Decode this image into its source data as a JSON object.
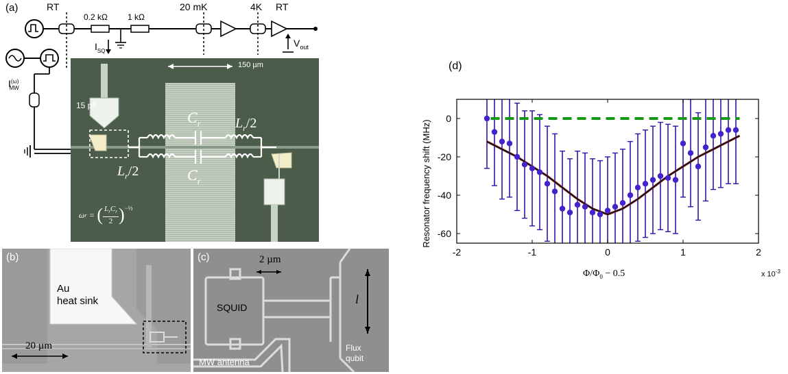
{
  "panel_a": {
    "letter": "(a)",
    "rt_left": "RT",
    "r1": "0.2 kΩ",
    "r2": "1 kΩ",
    "temp_20mk": "20 mK",
    "temp_4k": "4K",
    "rt_right": "RT",
    "vout": "V",
    "vout_sub": "out",
    "isq": "I",
    "isq_sub": "SQ",
    "imw": "I",
    "imw_sup": "(ω)",
    "imw_sub": "MW",
    "scale": "150 µm",
    "cap": "15 pF",
    "cr_top": "C",
    "cr_top_sub": "r",
    "cr_bot": "C",
    "cr_bot_sub": "r",
    "lr_right": "L",
    "lr_right_tail": "/2",
    "lr_left": "L",
    "lr_left_tail": "/2",
    "lr_sub": "r",
    "formula_lhs": "ω",
    "formula_lhs_sub": "r",
    "formula_rhs_num": "L",
    "formula_rhs_num_sub1": "r",
    "formula_rhs_num2": "C",
    "formula_rhs_num_sub2": "r",
    "formula_den": "2",
    "formula_exp": "−½"
  },
  "panel_b": {
    "letter": "(b)",
    "au_line1": "Au",
    "au_line2": "heat sink",
    "scale": "20 µm"
  },
  "panel_c": {
    "letter": "(c)",
    "scale": "2 µm",
    "squid": "SQUID",
    "length": "l",
    "antenna": "MW antenna",
    "flux1": "Flux",
    "flux2": "qubit"
  },
  "panel_d": {
    "letter": "(d)",
    "ylabel": "Resonator frequency shift (MHz)",
    "xlabel": "Φ/Φ",
    "xlabel_sub": "0",
    "xlabel_tail": " − 0.5",
    "x_multiplier": "x 10",
    "x_multiplier_exp": "-3"
  },
  "chart_data": {
    "type": "scatter",
    "xlim": [
      -2,
      2
    ],
    "ylim": [
      -65,
      10
    ],
    "x_ticks": [
      "-2",
      "-1",
      "0",
      "1",
      "2"
    ],
    "y_ticks": [
      "0",
      "-20",
      "-40",
      "-60"
    ],
    "x_tick_values": [
      -2,
      -1,
      0,
      1,
      2
    ],
    "y_tick_values": [
      0,
      -20,
      -40,
      -60
    ],
    "grid": false,
    "colors": {
      "points": "#4422cc",
      "errorbars": "#3311aa",
      "fit": "#111111",
      "fit_overlay": "#b03030",
      "reference": "#119911"
    },
    "series": [
      {
        "kind": "points_with_errorbars",
        "x": [
          -1.6,
          -1.5,
          -1.4,
          -1.3,
          -1.2,
          -1.1,
          -1.0,
          -0.9,
          -0.8,
          -0.7,
          -0.6,
          -0.5,
          -0.4,
          -0.3,
          -0.2,
          -0.1,
          0.0,
          0.1,
          0.2,
          0.3,
          0.4,
          0.5,
          0.6,
          0.7,
          0.8,
          0.9,
          1.0,
          1.1,
          1.2,
          1.3,
          1.4,
          1.5,
          1.6,
          1.7
        ],
        "y": [
          0,
          -7,
          -12,
          -13,
          -20,
          -24,
          -26,
          -28,
          -34,
          -38,
          -47,
          -49,
          -45,
          -46,
          -49,
          -50,
          -48,
          -46,
          -44,
          -40,
          -36,
          -34,
          -32,
          -30,
          -31,
          -32,
          -13,
          -18,
          -25,
          -15,
          -9,
          -8,
          -6,
          -6
        ],
        "err": [
          26,
          28,
          30,
          28,
          28,
          28,
          30,
          30,
          30,
          30,
          30,
          28,
          28,
          28,
          28,
          28,
          28,
          28,
          28,
          28,
          28,
          28,
          28,
          28,
          28,
          28,
          28,
          28,
          28,
          28,
          28,
          28,
          28,
          28
        ]
      },
      {
        "kind": "fit",
        "x": [
          -1.6,
          -1.4,
          -1.2,
          -1.0,
          -0.8,
          -0.6,
          -0.4,
          -0.2,
          0.0,
          0.2,
          0.4,
          0.6,
          0.8,
          1.0,
          1.2,
          1.4,
          1.6,
          1.75
        ],
        "y": [
          -12,
          -16,
          -20,
          -25,
          -30,
          -36,
          -42,
          -47,
          -50,
          -47,
          -42,
          -36,
          -30,
          -25,
          -20,
          -16,
          -12,
          -9
        ]
      },
      {
        "kind": "reference",
        "x": [
          -1.55,
          1.75
        ],
        "y": [
          0,
          0
        ]
      }
    ]
  }
}
